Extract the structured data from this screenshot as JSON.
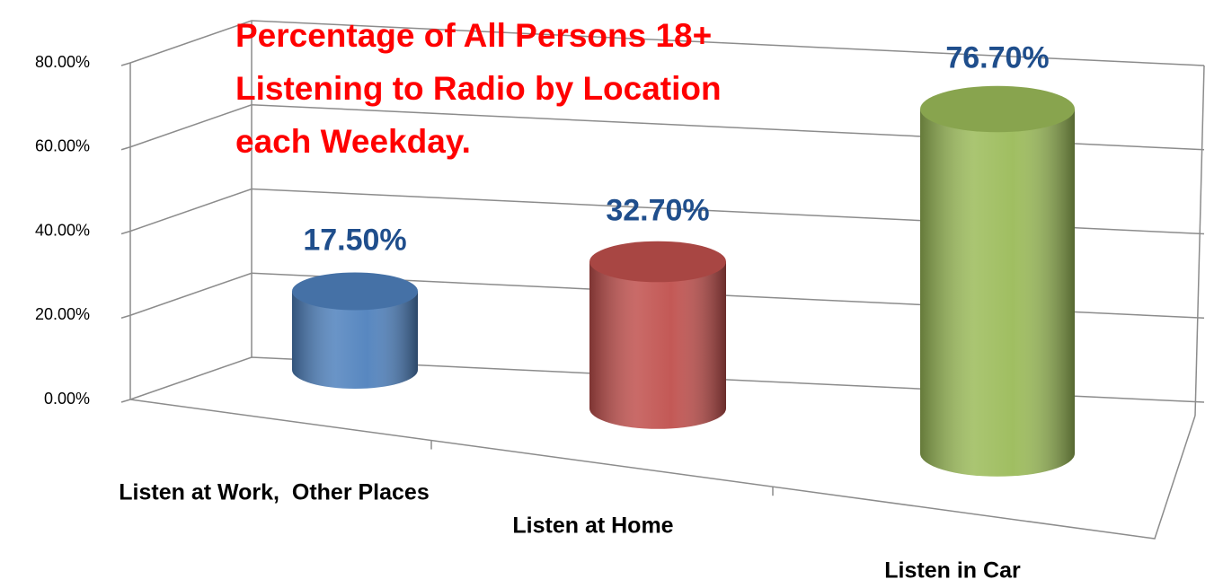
{
  "chart_data": {
    "type": "bar3d",
    "title": [
      "Percentage of All Persons 18+",
      "Listening to Radio by Location",
      "each Weekday."
    ],
    "categories": [
      "Listen at Work,  Other Places",
      "Listen at Home",
      "Listen in Car"
    ],
    "values": [
      17.5,
      32.7,
      76.7
    ],
    "value_labels": [
      "17.50%",
      "32.70%",
      "76.70%"
    ],
    "colors": [
      "#4f81bd",
      "#c0504d",
      "#9bbb59"
    ],
    "ylim": [
      0,
      80
    ],
    "yticks": [
      {
        "value": 0,
        "label": "0.00%"
      },
      {
        "value": 20,
        "label": "20.00%"
      },
      {
        "value": 40,
        "label": "40.00%"
      },
      {
        "value": 60,
        "label": "60.00%"
      },
      {
        "value": 80,
        "label": "80.00%"
      }
    ],
    "grid": true
  }
}
